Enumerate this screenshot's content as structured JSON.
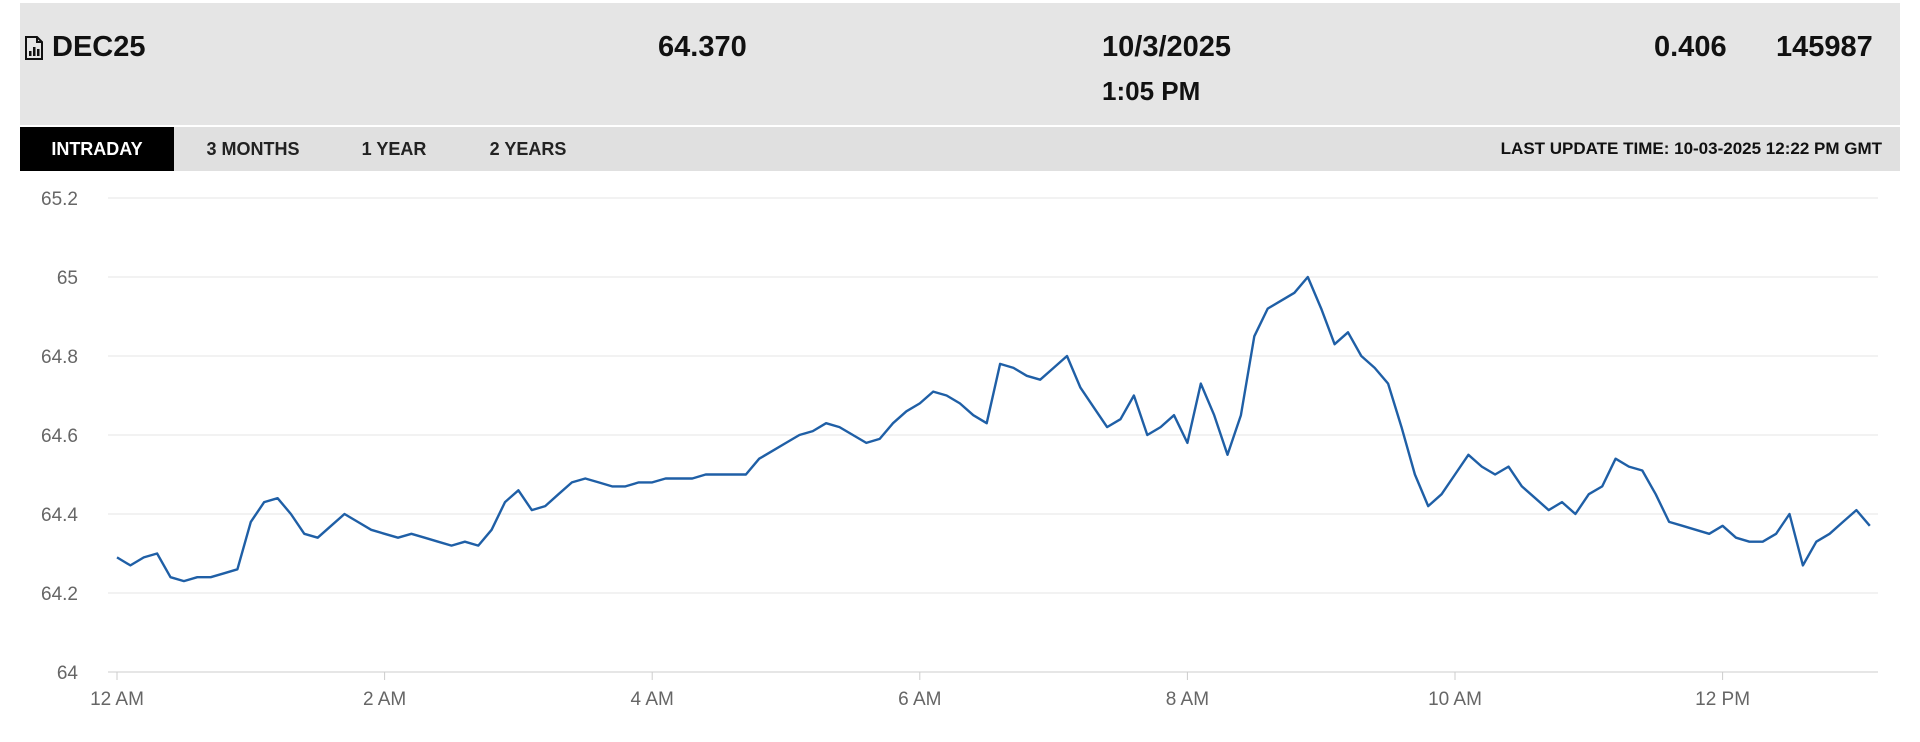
{
  "quote": {
    "symbol": "DEC25",
    "last": "64.370",
    "date": "10/3/2025",
    "time": "1:05 PM",
    "change": "0.406",
    "volume": "145987"
  },
  "tabs": [
    {
      "label": "INTRADAY",
      "active": true
    },
    {
      "label": "3 MONTHS",
      "active": false
    },
    {
      "label": "1 YEAR",
      "active": false
    },
    {
      "label": "2 YEARS",
      "active": false
    }
  ],
  "last_update": "LAST UPDATE TIME: 10-03-2025 12:22 PM GMT",
  "colors": {
    "line": "#1f5fa6",
    "grid": "#e6e6e6",
    "tab_active_bg": "#000000",
    "header_bg": "#e5e5e5"
  },
  "chart_data": {
    "type": "line",
    "title": "",
    "xlabel": "",
    "ylabel": "",
    "ylim": [
      64,
      65.2
    ],
    "xlim": [
      0,
      13.2
    ],
    "y_ticks": [
      "65.2",
      "65",
      "64.8",
      "64.6",
      "64.4",
      "64.2",
      "64"
    ],
    "x_ticks": [
      {
        "label": "12 AM",
        "hour": 0
      },
      {
        "label": "2 AM",
        "hour": 2
      },
      {
        "label": "4 AM",
        "hour": 4
      },
      {
        "label": "6 AM",
        "hour": 6
      },
      {
        "label": "8 AM",
        "hour": 8
      },
      {
        "label": "10 AM",
        "hour": 10
      },
      {
        "label": "12 PM",
        "hour": 12
      }
    ],
    "grid": "horizontal",
    "series": [
      {
        "x": [
          0.0,
          0.1,
          0.2,
          0.3,
          0.4,
          0.5,
          0.6,
          0.7,
          0.8,
          0.9,
          1.0,
          1.1,
          1.2,
          1.3,
          1.4,
          1.5,
          1.6,
          1.7,
          1.8,
          1.9,
          2.0,
          2.1,
          2.2,
          2.3,
          2.4,
          2.5,
          2.6,
          2.7,
          2.8,
          2.9,
          3.0,
          3.1,
          3.2,
          3.3,
          3.4,
          3.5,
          3.6,
          3.7,
          3.8,
          3.9,
          4.0,
          4.1,
          4.2,
          4.3,
          4.4,
          4.5,
          4.6,
          4.7,
          4.8,
          4.9,
          5.0,
          5.1,
          5.2,
          5.3,
          5.4,
          5.5,
          5.6,
          5.7,
          5.8,
          5.9,
          6.0,
          6.1,
          6.2,
          6.3,
          6.4,
          6.5,
          6.6,
          6.7,
          6.8,
          6.9,
          7.0,
          7.1,
          7.2,
          7.3,
          7.4,
          7.5,
          7.6,
          7.7,
          7.8,
          7.9,
          8.0,
          8.1,
          8.2,
          8.3,
          8.4,
          8.5,
          8.6,
          8.7,
          8.8,
          8.9,
          9.0,
          9.1,
          9.2,
          9.3,
          9.4,
          9.5,
          9.6,
          9.7,
          9.8,
          9.9,
          10.0,
          10.1,
          10.2,
          10.3,
          10.4,
          10.5,
          10.6,
          10.7,
          10.8,
          10.9,
          11.0,
          11.1,
          11.2,
          11.3,
          11.4,
          11.5,
          11.6,
          11.7,
          11.8,
          11.9,
          12.0,
          12.1,
          12.2,
          12.3,
          12.4,
          12.5,
          12.6,
          12.7,
          12.8,
          12.9,
          13.0,
          13.1
        ],
        "y": [
          64.29,
          64.27,
          64.29,
          64.3,
          64.24,
          64.23,
          64.24,
          64.24,
          64.25,
          64.26,
          64.38,
          64.43,
          64.44,
          64.4,
          64.35,
          64.34,
          64.37,
          64.4,
          64.38,
          64.36,
          64.35,
          64.34,
          64.35,
          64.34,
          64.33,
          64.32,
          64.33,
          64.32,
          64.36,
          64.43,
          64.46,
          64.41,
          64.42,
          64.45,
          64.48,
          64.49,
          64.48,
          64.47,
          64.47,
          64.48,
          64.48,
          64.49,
          64.49,
          64.49,
          64.5,
          64.5,
          64.5,
          64.5,
          64.54,
          64.56,
          64.58,
          64.6,
          64.61,
          64.63,
          64.62,
          64.6,
          64.58,
          64.59,
          64.63,
          64.66,
          64.68,
          64.71,
          64.7,
          64.68,
          64.65,
          64.63,
          64.78,
          64.77,
          64.75,
          64.74,
          64.77,
          64.8,
          64.72,
          64.67,
          64.62,
          64.64,
          64.7,
          64.6,
          64.62,
          64.65,
          64.58,
          64.73,
          64.65,
          64.55,
          64.65,
          64.85,
          64.92,
          64.94,
          64.96,
          65.0,
          64.92,
          64.83,
          64.86,
          64.8,
          64.77,
          64.73,
          64.62,
          64.5,
          64.42,
          64.45,
          64.5,
          64.55,
          64.52,
          64.5,
          64.52,
          64.47,
          64.44,
          64.41,
          64.43,
          64.4,
          64.45,
          64.47,
          64.54,
          64.52,
          64.51,
          64.45,
          64.38,
          64.37,
          64.36,
          64.35,
          64.37,
          64.34,
          64.33,
          64.33,
          64.35,
          64.4,
          64.27,
          64.33,
          64.35,
          64.38,
          64.41,
          64.37
        ]
      }
    ]
  }
}
